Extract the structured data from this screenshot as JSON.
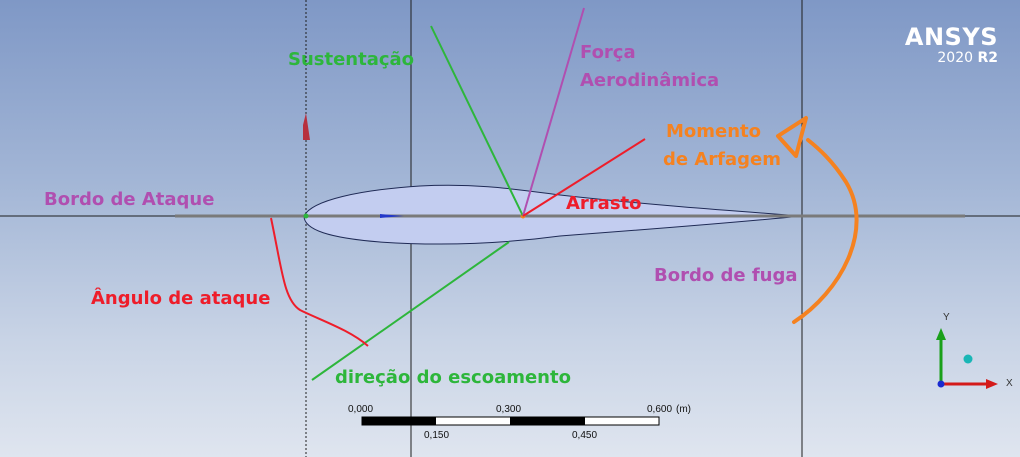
{
  "logo": {
    "name": "ANSYS",
    "version": "2020",
    "release": "R2"
  },
  "labels": {
    "lift": "Sustentação",
    "resultant_line1": "Força",
    "resultant_line2": "Aerodinâmica",
    "moment_line1": "Momento",
    "moment_line2": "de Arfagem",
    "leading_edge": "Bordo de Ataque",
    "drag": "Arrasto",
    "trailing_edge": "Bordo de fuga",
    "angle_of_attack": "Ângulo de ataque",
    "flow_direction": "direção do escoamento"
  },
  "scale_bar": {
    "top_ticks": [
      "0,000",
      "0,300",
      "0,600"
    ],
    "unit": "(m)",
    "bottom_ticks": [
      "0,150",
      "0,450"
    ]
  },
  "triad": {
    "y_label": "Y",
    "x_label": "X"
  },
  "colors": {
    "purple": "#b04fb0",
    "green": "#2db63b",
    "red": "#ee1d2a",
    "orange": "#f58220",
    "airfoil_fill": "#c3cdf0"
  }
}
